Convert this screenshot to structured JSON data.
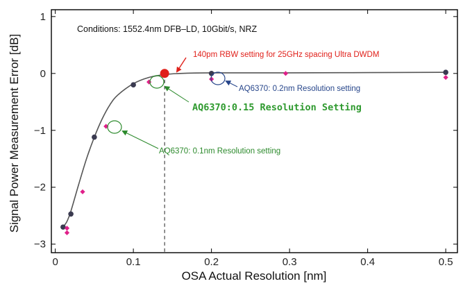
{
  "chart_data": {
    "type": "scatter",
    "xlabel": "OSA Actual Resolution  [nm]",
    "ylabel": "Signal Power Measurement Error  [dB]",
    "xlim": [
      -0.005,
      0.515
    ],
    "ylim": [
      -3.15,
      1.12
    ],
    "xticks": [
      0,
      0.1,
      0.2,
      0.3,
      0.4,
      0.5
    ],
    "xtick_labels": [
      "0",
      "0.1",
      "0.2",
      "0.3",
      "0.4",
      "0.5"
    ],
    "yticks": [
      1,
      0,
      -1,
      -2,
      -3
    ],
    "ytick_labels": [
      "1",
      "0",
      "−1",
      "−2",
      "−3"
    ],
    "conditions": "Conditions: 1552.4nm DFB–LD, 10Gbit/s, NRZ",
    "series": [
      {
        "color": "#3a3a50",
        "marker": "circle",
        "x": [
          0.01,
          0.02,
          0.05,
          0.1,
          0.2,
          0.5
        ],
        "y": [
          -2.7,
          -2.47,
          -1.12,
          -0.2,
          0.0,
          0.02
        ]
      },
      {
        "color": "#e0208a",
        "marker": "diamond",
        "x": [
          0.015,
          0.015,
          0.035,
          0.065,
          0.12,
          0.2,
          0.295,
          0.5
        ],
        "y": [
          -2.72,
          -2.8,
          -2.08,
          -0.93,
          -0.15,
          -0.1,
          0.0,
          -0.07
        ]
      }
    ],
    "highlight_point": {
      "x": 0.14,
      "y": 0.0,
      "color": "#e0201a"
    },
    "fit_curve": {
      "color": "#555555",
      "x": [
        0.01,
        0.015,
        0.02,
        0.03,
        0.04,
        0.05,
        0.06,
        0.07,
        0.08,
        0.1,
        0.12,
        0.14,
        0.16,
        0.2,
        0.3,
        0.4,
        0.5
      ],
      "y": [
        -2.7,
        -2.6,
        -2.42,
        -1.95,
        -1.5,
        -1.12,
        -0.8,
        -0.55,
        -0.38,
        -0.18,
        -0.07,
        -0.02,
        0.0,
        0.01,
        0.01,
        0.015,
        0.02
      ]
    },
    "vertical_line_x": 0.14,
    "annotations": [
      {
        "text": "140pm RBW setting for 25GHz spacing Ultra DWDM",
        "color": "#e0201a"
      },
      {
        "text": "AQ6370: 0.2nm Resolution setting",
        "color": "#26458a"
      },
      {
        "text": "AQ6370:0.15 Resolution Setting",
        "color": "#2f9a2f"
      },
      {
        "text": "AQ6370: 0.1nm Resolution setting",
        "color": "#2c8a2c"
      }
    ],
    "grid": false
  }
}
